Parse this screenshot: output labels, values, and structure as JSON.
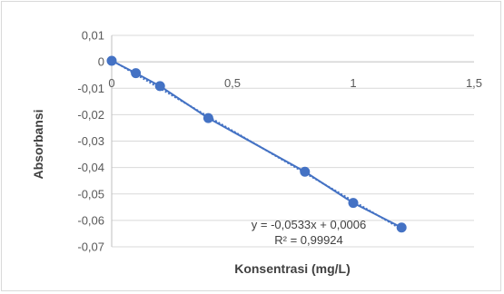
{
  "chart_data": {
    "type": "scatter",
    "xlabel": "Konsentrasi (mg/L)",
    "ylabel": "Absorbansi",
    "xlim": [
      0,
      1.5
    ],
    "ylim": [
      -0.07,
      0.01
    ],
    "x_ticks": [
      "0",
      "0,5",
      "1",
      "1,5"
    ],
    "x_tick_values": [
      0,
      0.5,
      1,
      1.5
    ],
    "y_ticks": [
      "0,01",
      "0",
      "-0,01",
      "-0,02",
      "-0,03",
      "-0,04",
      "-0,05",
      "-0,06",
      "-0,07"
    ],
    "y_tick_values": [
      0.01,
      0,
      -0.01,
      -0.02,
      -0.03,
      -0.04,
      -0.05,
      -0.06,
      -0.07
    ],
    "grid": true,
    "series": [
      {
        "x": [
          0,
          0.1,
          0.2,
          0.4,
          0.8,
          1.0,
          1.2
        ],
        "y": [
          0.0004,
          -0.0043,
          -0.0092,
          -0.0213,
          -0.0416,
          -0.0534,
          -0.0627
        ],
        "color": "#4472c4"
      }
    ],
    "trendline": {
      "slope": -0.0533,
      "intercept": 0.0006,
      "equation": "y = -0,0533x + 0,0006",
      "r_squared": "R² = 0,99924",
      "color": "#4472c4",
      "style": "dotted"
    }
  }
}
